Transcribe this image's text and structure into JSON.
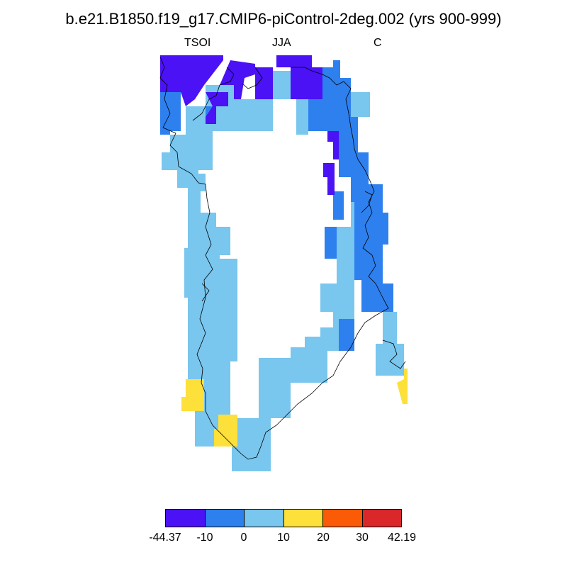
{
  "title": "b.e21.B1850.f19_g17.CMIP6-piControl-2deg.002 (yrs 900-999)",
  "left_label": "TSOI",
  "center_label": "JJA",
  "right_label": "C",
  "colors": {
    "c1": "#4a12f5",
    "c2": "#2e80ee",
    "c3": "#79c6ee",
    "c4": "#fde03a",
    "c5": "#fb5a06",
    "c6": "#d9272a",
    "coast": "#000000"
  },
  "colorbar": {
    "colors": [
      "#4a12f5",
      "#2e80ee",
      "#79c6ee",
      "#fde03a",
      "#fb5a06",
      "#d9272a"
    ],
    "labels": [
      "-44.37",
      "-10",
      "0",
      "10",
      "20",
      "30",
      "42.19"
    ]
  }
}
